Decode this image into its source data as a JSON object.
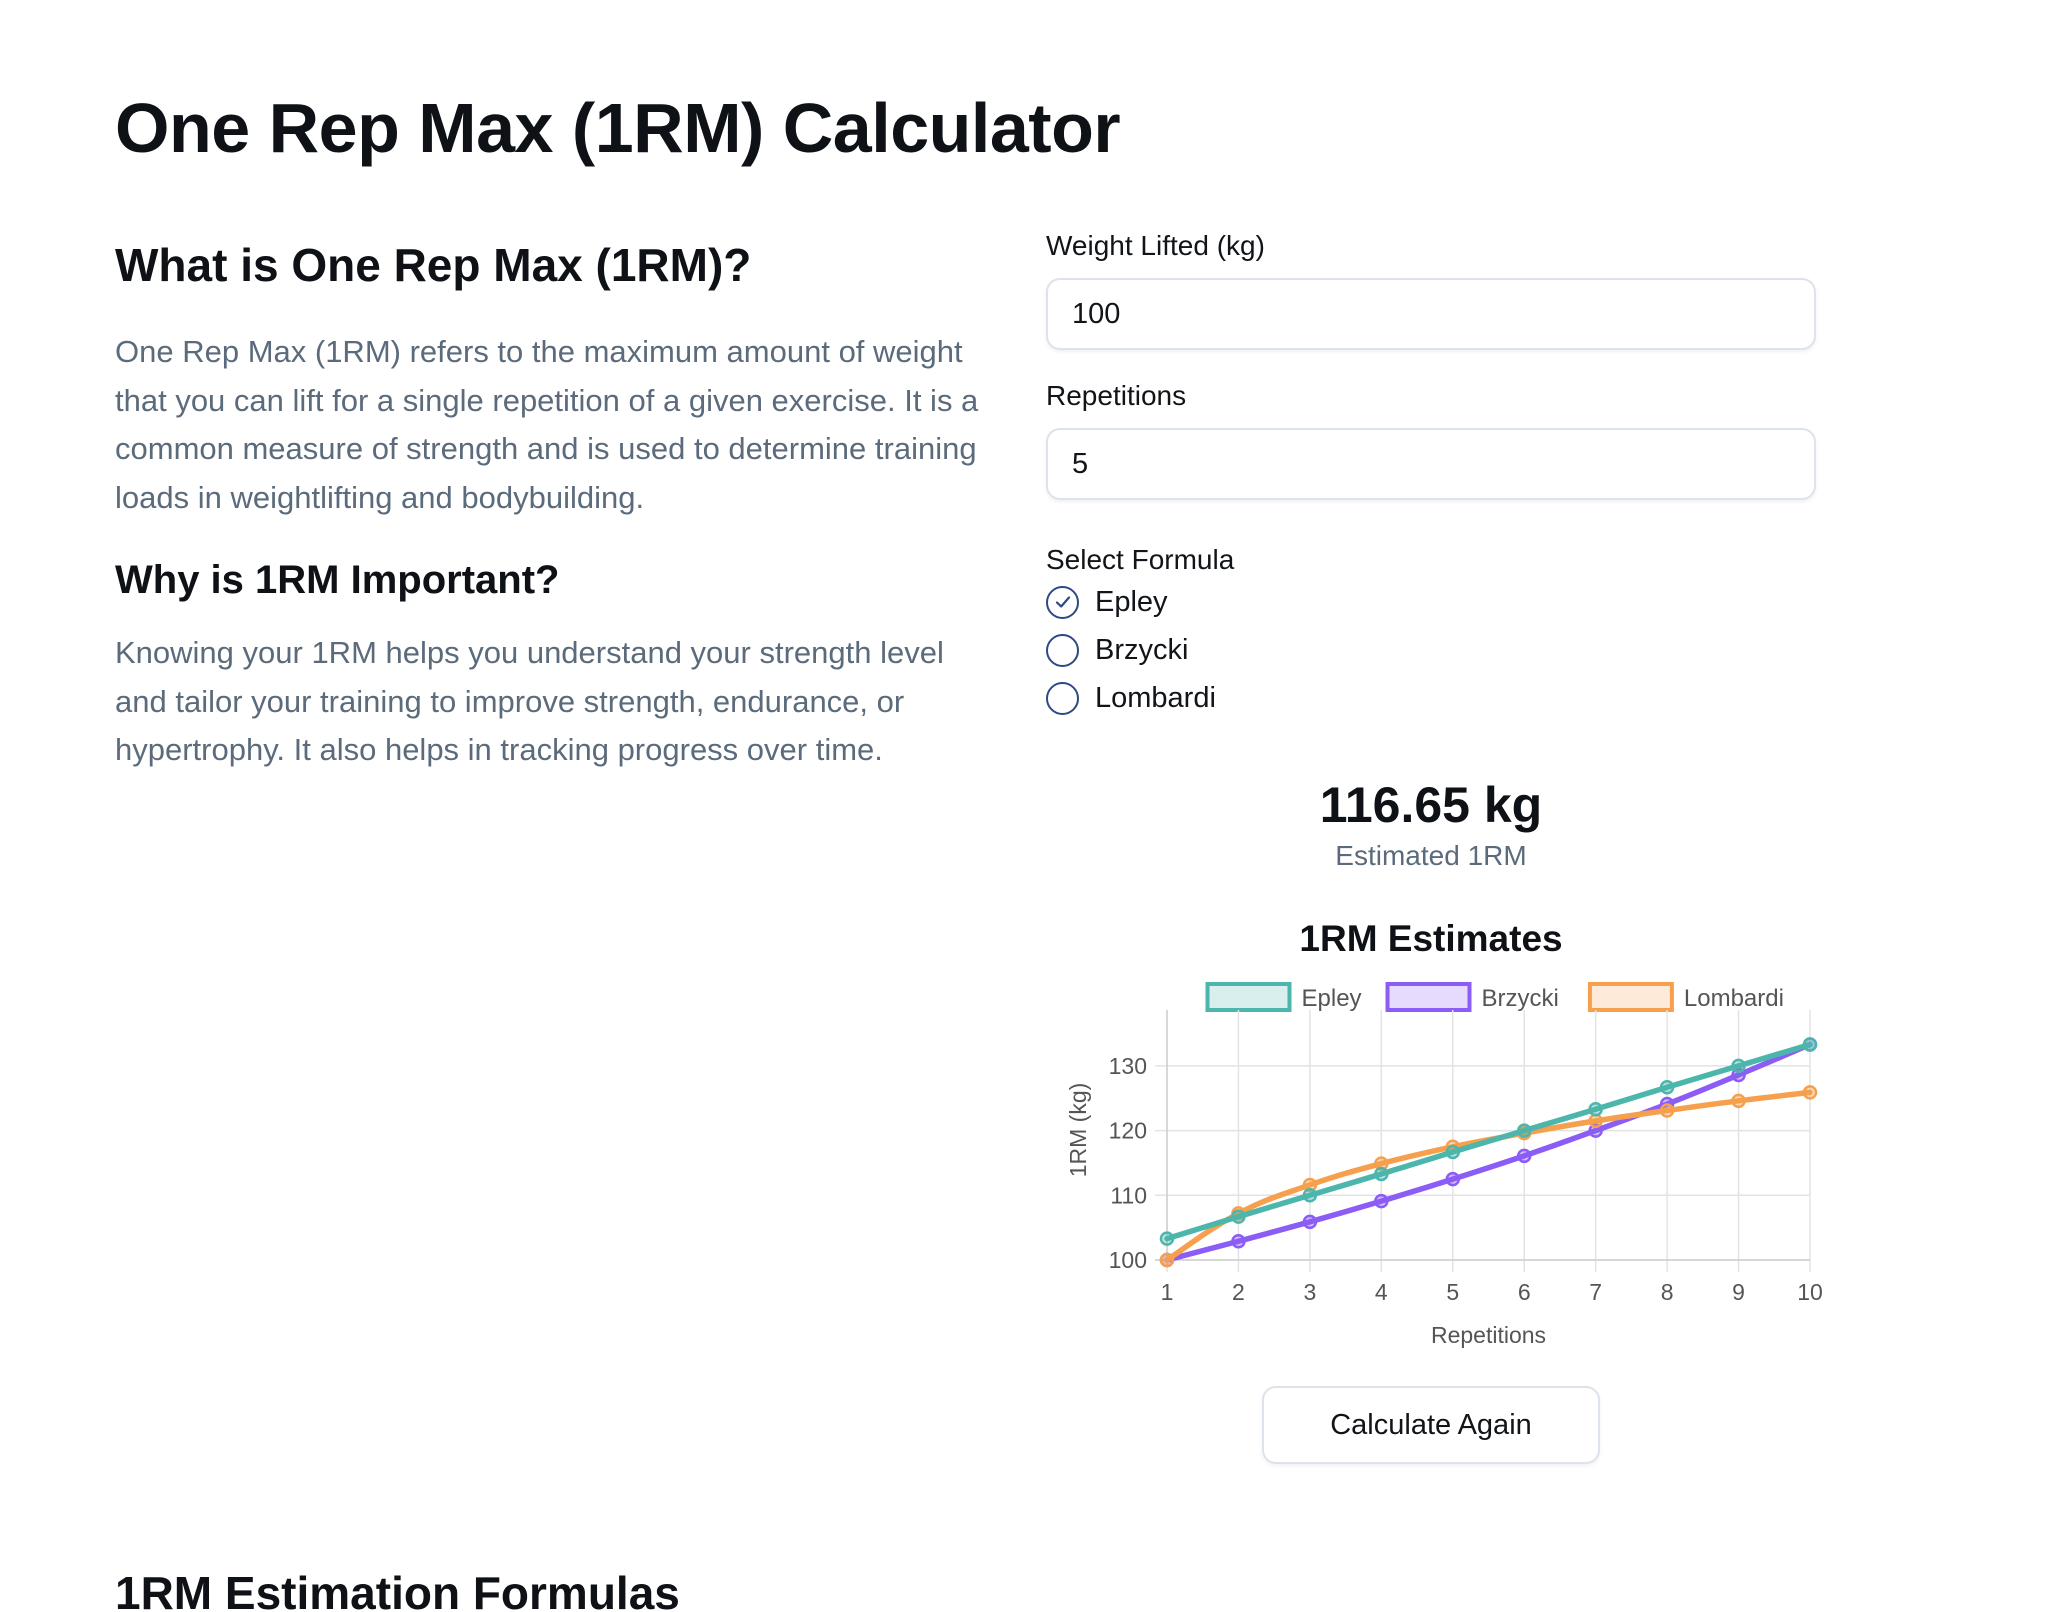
{
  "page": {
    "title": "One Rep Max (1RM) Calculator"
  },
  "info": {
    "what_heading": "What is One Rep Max (1RM)?",
    "what_text": "One Rep Max (1RM) refers to the maximum amount of weight that you can lift for a single repetition of a given exercise. It is a common measure of strength and is used to determine training loads in weightlifting and bodybuilding.",
    "why_heading": "Why is 1RM Important?",
    "why_text": "Knowing your 1RM helps you understand your strength level and tailor your training to improve strength, endurance, or hypertrophy. It also helps in tracking progress over time."
  },
  "form": {
    "weight_label": "Weight Lifted (kg)",
    "weight_value": "100",
    "reps_label": "Repetitions",
    "reps_value": "5",
    "formula_label": "Select Formula",
    "formulas": [
      {
        "label": "Epley",
        "selected": true
      },
      {
        "label": "Brzycki",
        "selected": false
      },
      {
        "label": "Lombardi",
        "selected": false
      }
    ]
  },
  "result": {
    "value": "116.65 kg",
    "label": "Estimated 1RM"
  },
  "chart_data": {
    "type": "line",
    "title": "1RM Estimates",
    "xlabel": "Repetitions",
    "ylabel": "1RM (kg)",
    "x": [
      1,
      2,
      3,
      4,
      5,
      6,
      7,
      8,
      9,
      10
    ],
    "ylim": [
      100,
      134
    ],
    "yticks": [
      100,
      110,
      120,
      130
    ],
    "grid": true,
    "legend_position": "top",
    "series": [
      {
        "name": "Epley",
        "color": "#4db6ac",
        "values": [
          103.3,
          106.7,
          110.0,
          113.3,
          116.7,
          120.0,
          123.3,
          126.7,
          130.0,
          133.3
        ]
      },
      {
        "name": "Brzycki",
        "color": "#8b5cf6",
        "values": [
          100.0,
          102.9,
          105.9,
          109.1,
          112.5,
          116.1,
          120.0,
          124.1,
          128.6,
          133.3
        ]
      },
      {
        "name": "Lombardi",
        "color": "#f6a04d",
        "values": [
          100.0,
          107.2,
          111.6,
          114.9,
          117.5,
          119.6,
          121.5,
          123.1,
          124.6,
          125.9
        ]
      }
    ]
  },
  "actions": {
    "calculate_again": "Calculate Again"
  },
  "formulas_section": {
    "heading": "1RM Estimation Formulas"
  }
}
